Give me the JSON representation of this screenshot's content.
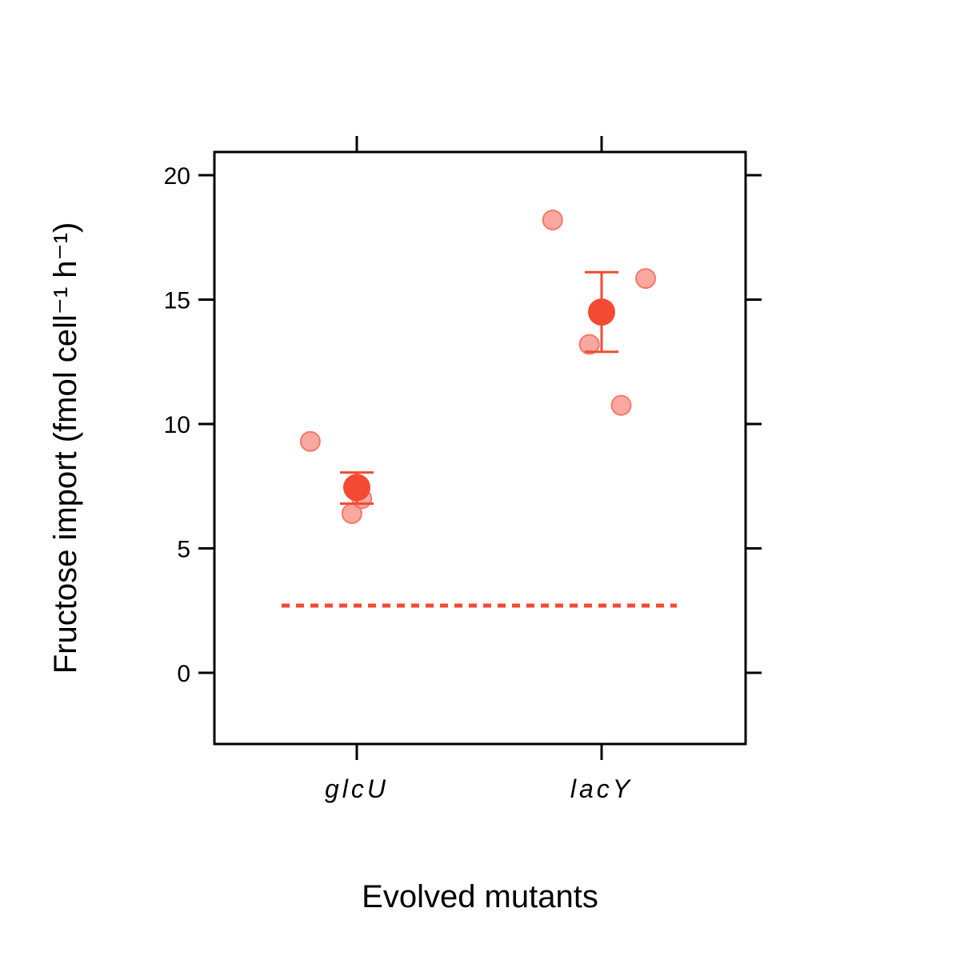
{
  "chart_data": {
    "type": "scatter",
    "xlabel": "Evolved mutants",
    "ylabel": "Fructose import (fmol cell⁻¹ h⁻¹)",
    "ylim": [
      -2.9,
      20.9
    ],
    "yticks": [
      0,
      5,
      10,
      15,
      20
    ],
    "categories": [
      "glcU",
      "lacY"
    ],
    "points": [
      {
        "category": "glcU",
        "offset": -0.19,
        "y": 9.3
      },
      {
        "category": "glcU",
        "offset": 0.02,
        "y": 7.0
      },
      {
        "category": "glcU",
        "offset": -0.02,
        "y": 6.4
      },
      {
        "category": "lacY",
        "offset": -0.2,
        "y": 18.2
      },
      {
        "category": "lacY",
        "offset": 0.18,
        "y": 15.85
      },
      {
        "category": "lacY",
        "offset": -0.05,
        "y": 13.2
      },
      {
        "category": "lacY",
        "offset": 0.08,
        "y": 10.75
      }
    ],
    "means": [
      {
        "category": "glcU",
        "mean": 7.45,
        "lower": 6.8,
        "upper": 8.05
      },
      {
        "category": "lacY",
        "mean": 14.5,
        "lower": 12.9,
        "upper": 16.1
      }
    ],
    "reference_line": {
      "y": 2.7,
      "style": "dotted"
    },
    "colors": {
      "point": "#f4796b",
      "mean": "#f44a33",
      "axis": "#000000"
    },
    "grid": false,
    "legend": "none"
  }
}
